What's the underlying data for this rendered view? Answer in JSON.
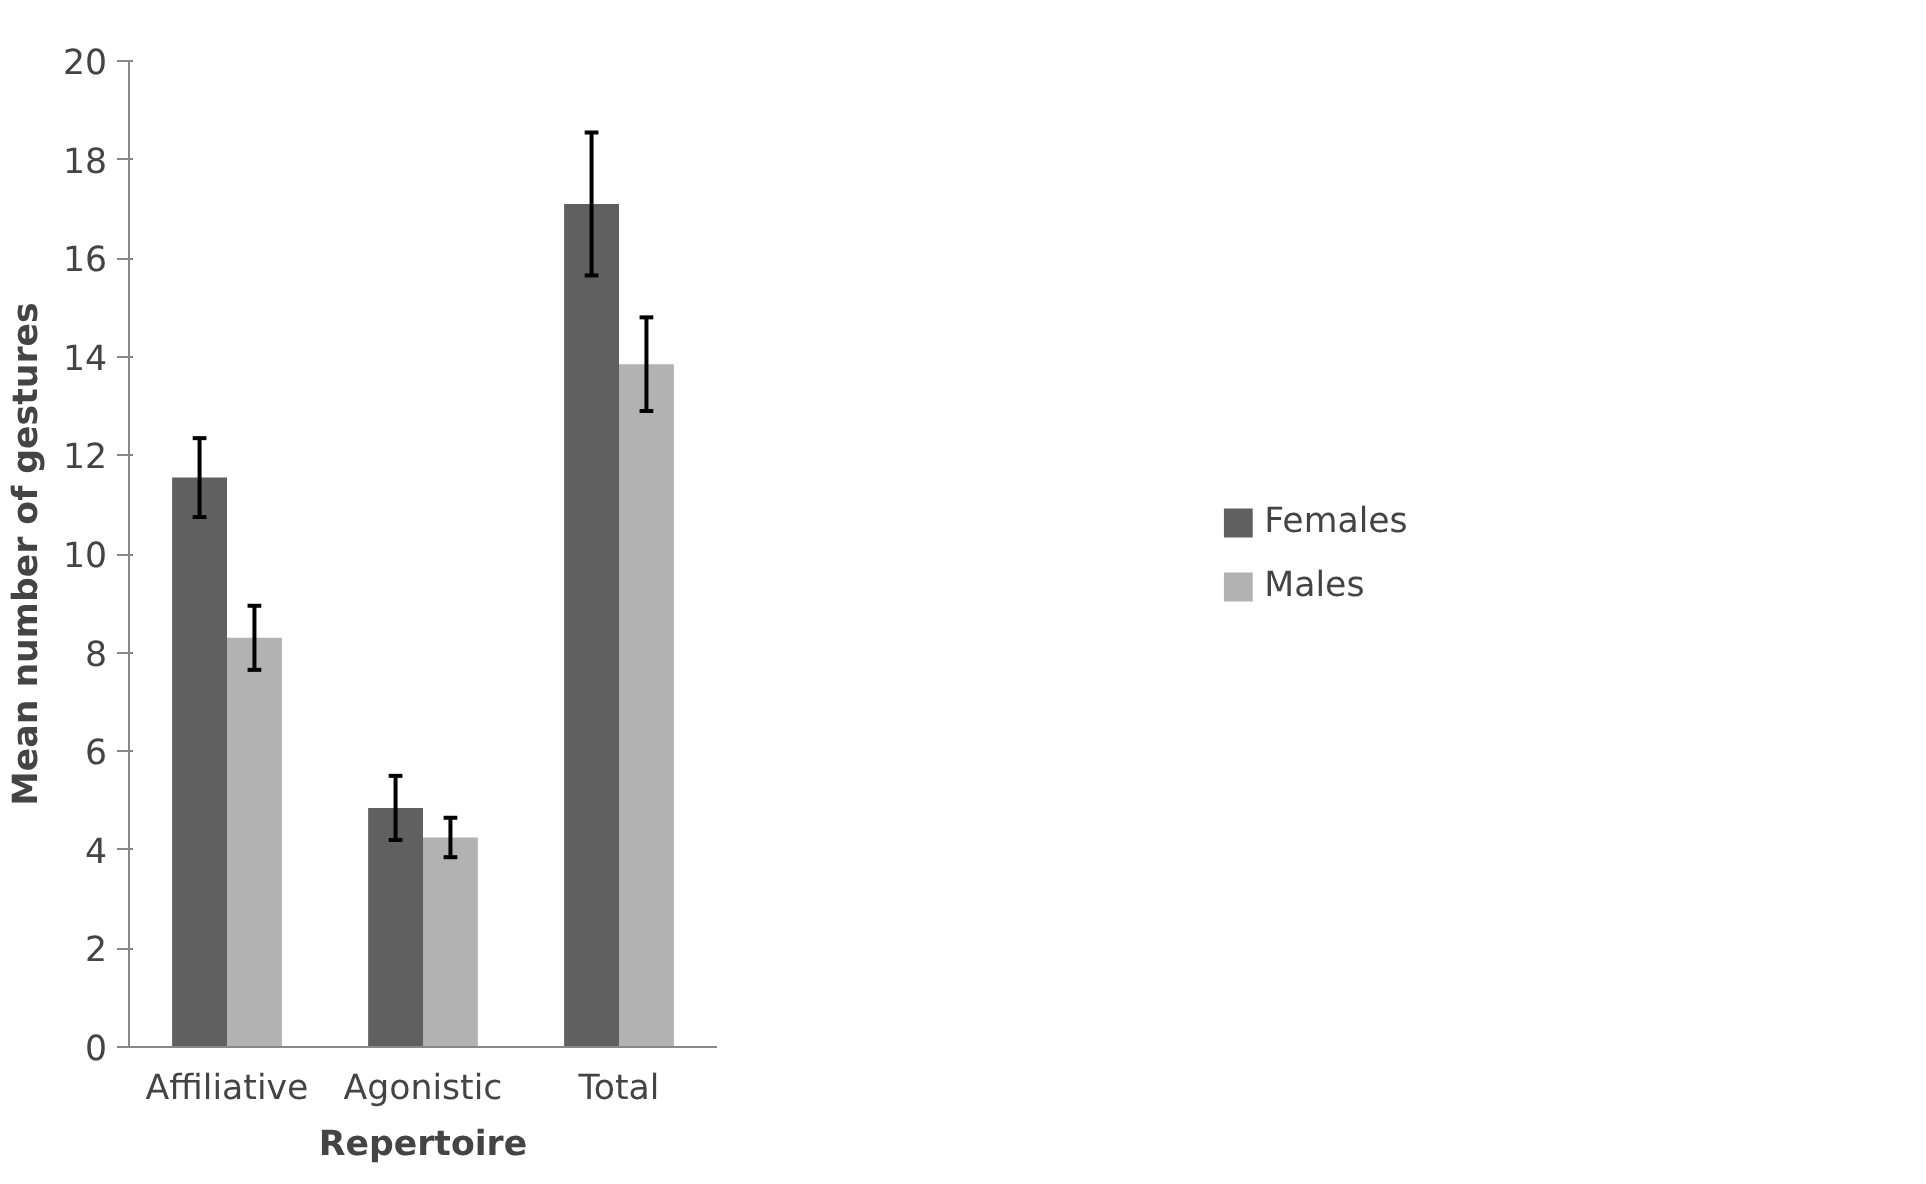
{
  "chart_data": {
    "type": "bar",
    "xlabel": "Repertoire",
    "ylabel": "Mean number of gestures",
    "categories": [
      "Affiliative",
      "Agonistic",
      "Total"
    ],
    "series": [
      {
        "name": "Females",
        "color": "#606060",
        "values": [
          11.55,
          4.85,
          17.1
        ],
        "errors": [
          0.8,
          0.65,
          1.45
        ]
      },
      {
        "name": "Males",
        "color": "#b2b2b2",
        "values": [
          8.3,
          4.25,
          13.85
        ],
        "errors": [
          0.65,
          0.4,
          0.95
        ]
      }
    ],
    "ylim": [
      0,
      20
    ],
    "yticks": [
      0,
      2,
      4,
      6,
      8,
      10,
      12,
      14,
      16,
      18,
      20
    ],
    "grid": false,
    "legend": "right"
  }
}
